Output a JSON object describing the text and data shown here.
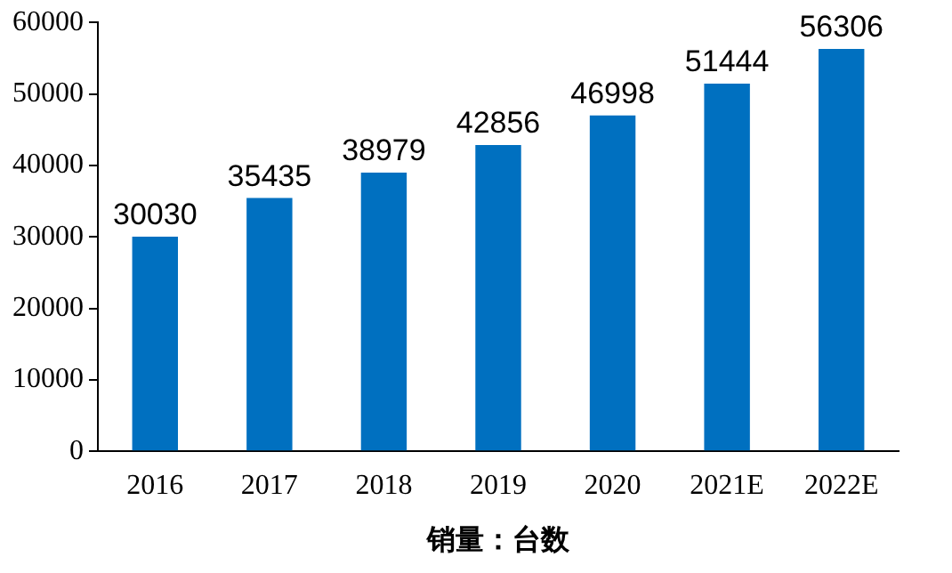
{
  "chart_data": {
    "type": "bar",
    "xlabel": "销量：台数",
    "categories": [
      "2016",
      "2017",
      "2018",
      "2019",
      "2020",
      "2021E",
      "2022E"
    ],
    "values": [
      30030,
      35435,
      38979,
      42856,
      46998,
      51444,
      56306
    ],
    "color": "#0070c0",
    "ylim": [
      0,
      60000
    ],
    "yticks": [
      0,
      10000,
      20000,
      30000,
      40000,
      50000,
      60000
    ],
    "grid": false,
    "data_labels": true
  }
}
